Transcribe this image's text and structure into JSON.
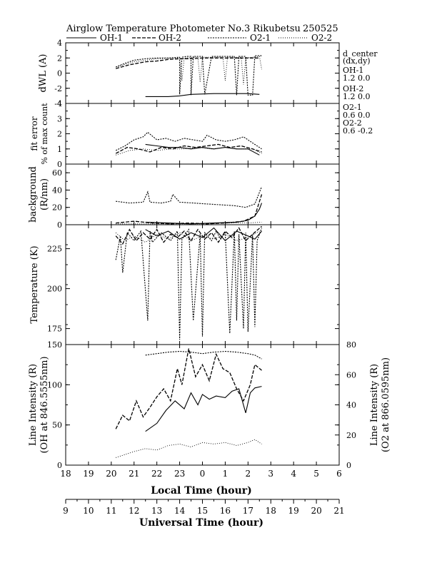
{
  "header": {
    "title": "Airglow Temperature Photometer No.3  Rikubetsu",
    "date": "250525",
    "legend": [
      {
        "label": "OH-1",
        "dash": "solid"
      },
      {
        "label": "OH-2",
        "dash": "dash"
      },
      {
        "label": "O2-1",
        "dash": "dot"
      },
      {
        "label": "O2-2",
        "dash": "finedot"
      }
    ]
  },
  "side_info": {
    "title": "d_center",
    "subtitle": "(dx,dy)",
    "entries": [
      {
        "name": "OH-1",
        "values": "1.2   0.0"
      },
      {
        "name": "OH-2",
        "values": "1.2   0.0"
      },
      {
        "name": "O2-1",
        "values": "0.6   0.0"
      },
      {
        "name": "O2-2",
        "values": "0.6   -0.2"
      }
    ]
  },
  "colors": {
    "foreground": "#000000",
    "background": "#ffffff"
  },
  "chart_data": [
    {
      "type": "line",
      "id": "dwl",
      "ylabel": "dWL (A)",
      "ylim": [
        -4,
        4
      ],
      "yticks": [
        "-4",
        "-2",
        "0",
        "2",
        "4"
      ],
      "series": [
        {
          "name": "OH-1",
          "x": [
            21.5,
            22.5,
            23.0,
            23.5,
            24.5,
            25.5,
            26.0,
            26.5
          ],
          "y": [
            -3.1,
            -3.1,
            -3.0,
            -2.8,
            -2.7,
            -2.7,
            -2.7,
            -2.8
          ]
        },
        {
          "name": "OH-2",
          "x": [
            20.2,
            20.8,
            21.5,
            22.0,
            22.5,
            23.0,
            23.5,
            24.0,
            24.5,
            25.0,
            25.5,
            26.0,
            26.5
          ],
          "y": [
            0.6,
            1.1,
            1.5,
            1.6,
            1.8,
            1.9,
            1.9,
            2.0,
            2.0,
            2.0,
            2.0,
            2.0,
            2.0
          ]
        },
        {
          "name": "O2-1",
          "x": [
            20.2,
            20.6,
            21.0,
            21.5,
            22.0,
            22.5,
            23.0,
            23.0,
            23.1,
            23.3,
            23.5,
            23.5,
            23.6,
            24.0,
            24.1,
            24.4,
            24.5,
            24.6,
            25.0,
            25.4,
            25.5,
            25.6,
            25.9,
            26.0,
            26.2,
            26.3,
            26.5,
            26.6
          ],
          "y": [
            0.8,
            1.3,
            1.7,
            1.9,
            2.0,
            2.0,
            2.1,
            -2.8,
            2.1,
            2.2,
            2.2,
            -2.9,
            2.2,
            2.2,
            -2.8,
            2.2,
            2.2,
            2.2,
            2.2,
            2.2,
            -2.9,
            2.2,
            2.2,
            -2.9,
            -2.9,
            2.3,
            2.3,
            2.3
          ]
        },
        {
          "name": "O2-2",
          "x": [
            20.2,
            21.0,
            22.0,
            23.0,
            23.1,
            23.2,
            23.8,
            23.9,
            24.0,
            24.9,
            25.0,
            25.1,
            25.7,
            25.8,
            25.9,
            26.5,
            26.6
          ],
          "y": [
            0.8,
            1.5,
            1.9,
            2.0,
            -1.0,
            2.0,
            2.1,
            -1.2,
            2.1,
            2.1,
            -1.0,
            2.1,
            2.1,
            -1.5,
            2.0,
            2.2,
            0.5
          ]
        }
      ]
    },
    {
      "type": "line",
      "id": "fit_error",
      "ylabel": "fit error",
      "ylabel2": "% of max count",
      "ylim": [
        0,
        4
      ],
      "yticks": [
        "0",
        "1",
        "2",
        "3",
        "4"
      ],
      "series": [
        {
          "name": "OH-1",
          "x": [
            21.5,
            22.0,
            22.5,
            23.0,
            23.5,
            24.0,
            24.5,
            25.0,
            25.5,
            26.0,
            26.5
          ],
          "y": [
            1.3,
            1.2,
            1.1,
            1.1,
            1.0,
            1.1,
            1.0,
            1.1,
            1.0,
            1.0,
            0.6
          ]
        },
        {
          "name": "OH-2",
          "x": [
            20.2,
            20.7,
            21.2,
            21.7,
            22.2,
            22.7,
            23.2,
            23.7,
            24.2,
            24.7,
            25.2,
            25.7,
            26.2,
            26.6
          ],
          "y": [
            0.7,
            1.1,
            1.0,
            0.8,
            1.1,
            1.0,
            1.2,
            1.1,
            1.2,
            1.3,
            1.1,
            1.2,
            1.0,
            0.8
          ]
        },
        {
          "name": "O2-1",
          "x": [
            20.2,
            20.6,
            21.0,
            21.4,
            21.6,
            22.0,
            22.4,
            22.8,
            23.2,
            23.6,
            24.0,
            24.2,
            24.6,
            25.0,
            25.4,
            25.8,
            26.2,
            26.6
          ],
          "y": [
            0.9,
            1.2,
            1.6,
            1.8,
            2.1,
            1.6,
            1.7,
            1.5,
            1.7,
            1.6,
            1.5,
            1.9,
            1.6,
            1.5,
            1.6,
            1.8,
            1.4,
            1.0
          ]
        },
        {
          "name": "O2-2",
          "x": [
            20.2,
            20.8,
            21.4,
            22.0,
            22.6,
            23.2,
            23.8,
            24.4,
            25.0,
            25.6,
            26.2,
            26.6
          ],
          "y": [
            0.6,
            0.9,
            1.0,
            0.9,
            1.0,
            1.0,
            1.1,
            1.0,
            1.1,
            1.0,
            1.0,
            0.7
          ]
        }
      ]
    },
    {
      "type": "line",
      "id": "background",
      "ylabel": "background",
      "ylabel2": "(R/nm)",
      "ylim": [
        0,
        70
      ],
      "yticks": [
        "0",
        "20",
        "40",
        "60"
      ],
      "series": [
        {
          "name": "OH-1",
          "x": [
            21.5,
            22.5,
            23.5,
            24.5,
            25.5,
            26.0,
            26.3,
            26.5,
            26.6
          ],
          "y": [
            3,
            2,
            1,
            2,
            3,
            5,
            10,
            18,
            25
          ]
        },
        {
          "name": "OH-2",
          "x": [
            20.2,
            21.0,
            21.8,
            22.6,
            23.4,
            24.2,
            25.0,
            25.8,
            26.3,
            26.6
          ],
          "y": [
            2,
            4,
            2,
            1,
            2,
            1,
            2,
            4,
            10,
            35
          ]
        },
        {
          "name": "O2-1",
          "x": [
            20.2,
            20.8,
            21.4,
            21.6,
            21.7,
            22.2,
            22.6,
            22.7,
            23.0,
            23.6,
            24.2,
            24.8,
            25.4,
            25.9,
            26.3,
            26.6
          ],
          "y": [
            27,
            25,
            26,
            38,
            26,
            25,
            27,
            35,
            26,
            25,
            24,
            23,
            22,
            20,
            24,
            44
          ]
        },
        {
          "name": "O2-2",
          "x": [
            20.2,
            21.0,
            22.0,
            23.0,
            24.0,
            25.0,
            26.0,
            26.6
          ],
          "y": [
            1,
            1,
            1,
            1,
            1,
            2,
            2,
            3
          ]
        }
      ]
    },
    {
      "type": "line",
      "id": "temperature",
      "ylabel": "Temperature (K)",
      "ylim": [
        165,
        240
      ],
      "yticks": [
        "175",
        "200",
        "225"
      ],
      "series": [
        {
          "name": "OH-1",
          "x": [
            21.5,
            22.0,
            22.5,
            23.0,
            23.5,
            24.0,
            24.5,
            25.0,
            25.5,
            26.0,
            26.3,
            26.6
          ],
          "y": [
            237,
            233,
            236,
            231,
            235,
            232,
            238,
            230,
            236,
            233,
            231,
            236
          ]
        },
        {
          "name": "OH-2",
          "x": [
            20.2,
            20.5,
            20.8,
            21.1,
            21.4,
            21.7,
            22.0,
            22.3,
            22.6,
            22.9,
            23.2,
            23.5,
            23.8,
            24.1,
            24.4,
            24.7,
            25.0,
            25.3,
            25.6,
            25.9,
            26.2,
            26.6
          ],
          "y": [
            233,
            228,
            237,
            230,
            235,
            231,
            237,
            229,
            234,
            232,
            236,
            230,
            237,
            231,
            235,
            229,
            236,
            232,
            238,
            230,
            234,
            239
          ]
        },
        {
          "name": "O2-1",
          "x": [
            20.2,
            20.4,
            20.5,
            20.7,
            21.0,
            21.3,
            21.6,
            21.7,
            21.8,
            22.2,
            22.6,
            22.9,
            23.0,
            23.1,
            23.4,
            23.6,
            23.9,
            24.0,
            24.1,
            24.4,
            24.6,
            24.8,
            25.0,
            25.2,
            25.4,
            25.5,
            25.6,
            25.8,
            25.9,
            26.0,
            26.2,
            26.3,
            26.4,
            26.6
          ],
          "y": [
            218,
            233,
            210,
            235,
            230,
            236,
            180,
            236,
            229,
            235,
            230,
            236,
            168,
            231,
            237,
            180,
            234,
            170,
            235,
            230,
            236,
            231,
            235,
            172,
            236,
            180,
            234,
            175,
            235,
            173,
            234,
            176,
            230,
            238
          ]
        },
        {
          "name": "O2-2",
          "x": [
            20.2,
            20.6,
            21.0,
            21.5,
            22.0,
            22.5,
            23.0,
            23.5,
            24.0,
            24.5,
            25.0,
            25.5,
            26.0,
            26.5
          ],
          "y": [
            235,
            230,
            233,
            229,
            234,
            231,
            235,
            230,
            233,
            231,
            234,
            230,
            232,
            236
          ]
        }
      ]
    },
    {
      "type": "line",
      "id": "intensity",
      "ylabel": "Line Intensity (R)",
      "ylabel2": "(OH at 846.5555nm)",
      "y2label": "Line Intensity (R)",
      "y2label2": "(O2 at 866.0595nm)",
      "ylim": [
        0,
        150
      ],
      "yticks": [
        "0",
        "50",
        "100",
        "150"
      ],
      "y2lim": [
        0,
        80
      ],
      "y2ticks": [
        "0",
        "20",
        "40",
        "60",
        "80"
      ],
      "xlabel": "Local Time (hour)",
      "xticks": [
        "18",
        "19",
        "20",
        "21",
        "22",
        "23",
        "0",
        "1",
        "2",
        "3",
        "4",
        "5",
        "6"
      ],
      "xlim": [
        18,
        30
      ],
      "x2label": "Universal Time (hour)",
      "x2ticks": [
        "9",
        "10",
        "11",
        "12",
        "13",
        "14",
        "15",
        "16",
        "17",
        "18",
        "19",
        "20",
        "21"
      ],
      "series": [
        {
          "name": "OH-1",
          "x": [
            21.5,
            22.0,
            22.4,
            22.8,
            23.2,
            23.5,
            23.8,
            24.0,
            24.3,
            24.6,
            25.0,
            25.3,
            25.6,
            25.9,
            26.1,
            26.3,
            26.6
          ],
          "y": [
            42,
            52,
            68,
            80,
            70,
            90,
            75,
            88,
            82,
            86,
            84,
            92,
            95,
            65,
            90,
            96,
            98
          ]
        },
        {
          "name": "OH-2",
          "x": [
            20.2,
            20.5,
            20.8,
            21.1,
            21.4,
            21.7,
            22.0,
            22.3,
            22.6,
            22.9,
            23.1,
            23.4,
            23.7,
            24.0,
            24.3,
            24.6,
            24.9,
            25.2,
            25.5,
            25.8,
            26.1,
            26.3,
            26.6
          ],
          "y": [
            45,
            62,
            55,
            80,
            60,
            72,
            85,
            95,
            80,
            120,
            100,
            145,
            110,
            125,
            105,
            138,
            120,
            115,
            95,
            80,
            100,
            125,
            118
          ]
        },
        {
          "name": "O2-1",
          "x": [
            21.5,
            22.0,
            22.5,
            23.0,
            23.5,
            24.0,
            24.5,
            25.0,
            25.5,
            26.0,
            26.3,
            26.6
          ],
          "y": [
            73,
            74,
            75,
            75.5,
            75,
            74,
            75,
            75.5,
            75,
            74,
            73,
            70.5
          ]
        },
        {
          "name": "O2-2",
          "x": [
            20.2,
            20.6,
            21.0,
            21.5,
            22.0,
            22.5,
            23.0,
            23.5,
            24.0,
            24.5,
            25.0,
            25.5,
            26.0,
            26.3,
            26.6
          ],
          "y": [
            5,
            7,
            9,
            11,
            10,
            13,
            14,
            12,
            15,
            14,
            15,
            13,
            15,
            17,
            14
          ]
        }
      ]
    }
  ]
}
